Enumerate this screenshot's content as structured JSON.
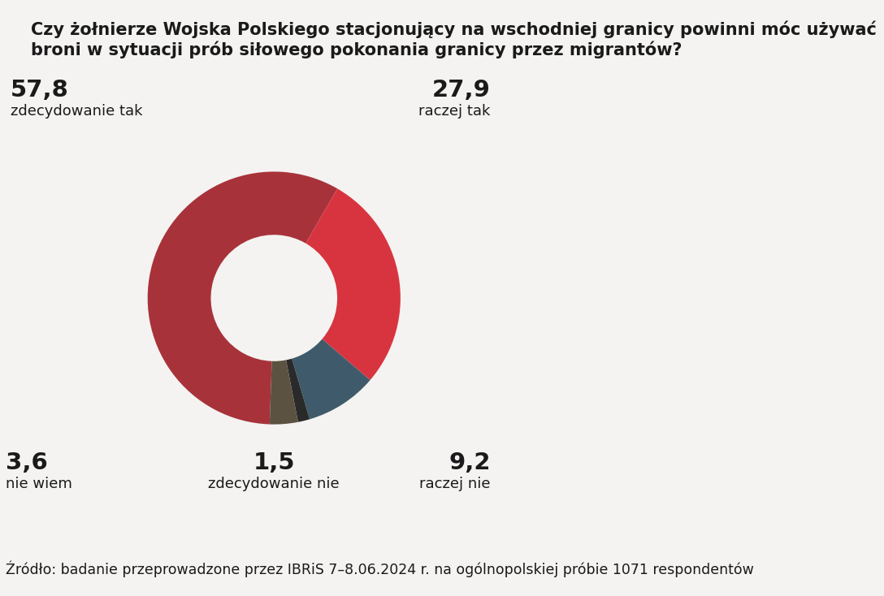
{
  "chart_data": {
    "type": "pie",
    "title": "Czy żołnierze Wojska Polskiego stacjonujący na wschodniej granicy powinni móc używać broni w sytuacji prób siłowego pokonania granicy przez migrantów?",
    "categories": [
      "zdecydowanie tak",
      "raczej tak",
      "raczej nie",
      "zdecydowanie nie",
      "nie wiem"
    ],
    "values": [
      57.8,
      27.9,
      9.2,
      1.5,
      3.6
    ],
    "value_labels": [
      "57,8",
      "27,9",
      "9,2",
      "1,5",
      "3,6"
    ],
    "colors": [
      "#a8323a",
      "#d8343f",
      "#3f5b6b",
      "#2a2a2a",
      "#5b5242"
    ],
    "data_labels": true,
    "annotations": [
      "Źródło: badanie przeprowadzone przez IBRiS 7–8.06.2024 r. na ogólnopolskiej próbie 1071 respondentów"
    ]
  }
}
